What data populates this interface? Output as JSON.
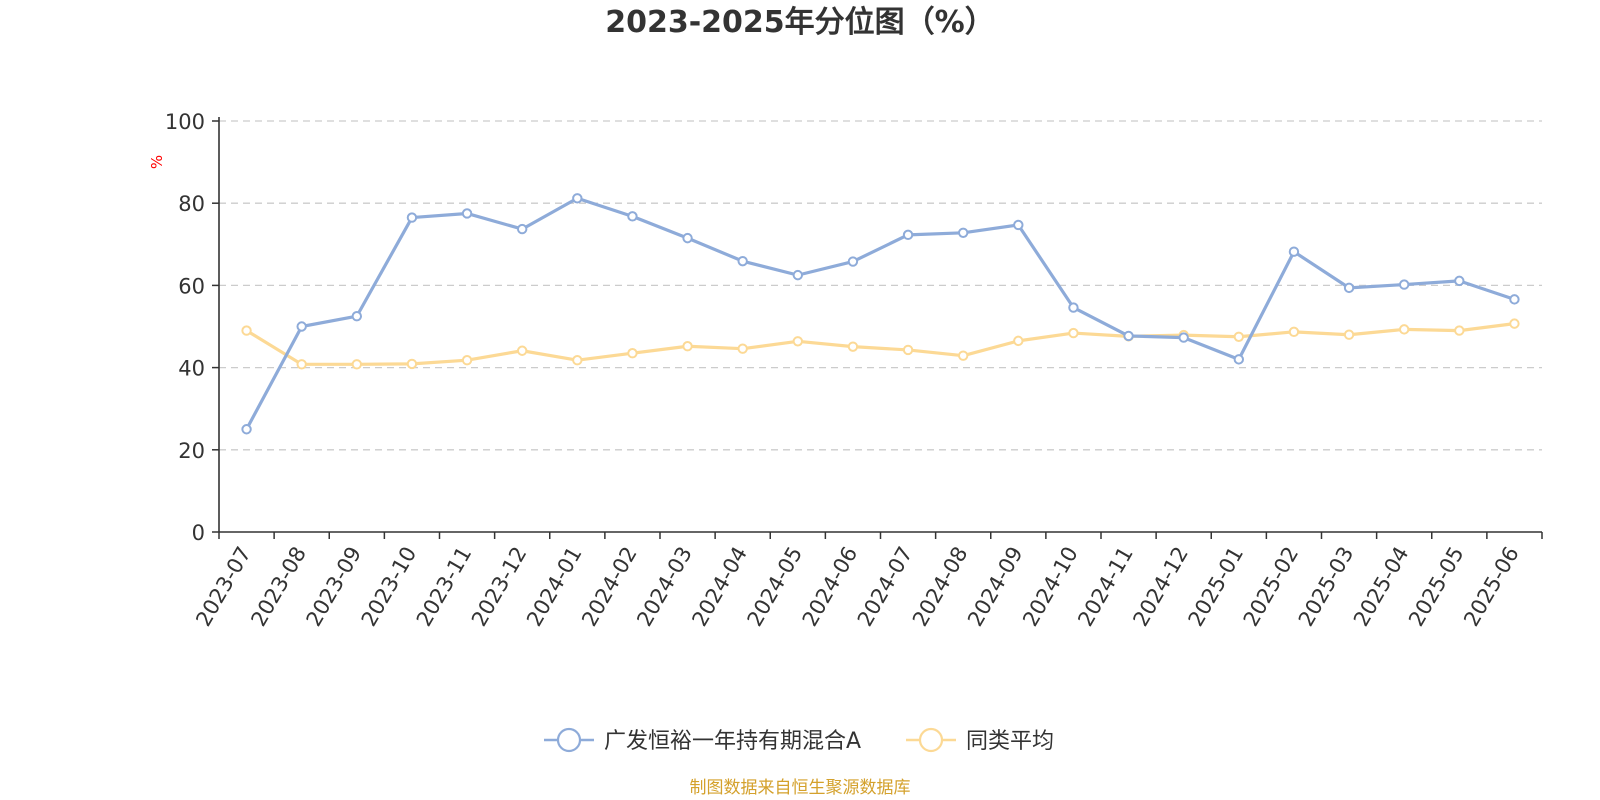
{
  "chart_data": {
    "type": "line",
    "title": "2023-2025年分位图（%）",
    "ylabel": "%",
    "xlabel": "",
    "ylim": [
      0,
      100
    ],
    "yticks": [
      0,
      20,
      40,
      60,
      80,
      100
    ],
    "grid": true,
    "legend_position": "bottom",
    "categories": [
      "2023-07",
      "2023-08",
      "2023-09",
      "2023-10",
      "2023-11",
      "2023-12",
      "2024-01",
      "2024-02",
      "2024-03",
      "2024-04",
      "2024-05",
      "2024-06",
      "2024-07",
      "2024-08",
      "2024-09",
      "2024-10",
      "2024-11",
      "2024-12",
      "2025-01",
      "2025-02",
      "2025-03",
      "2025-04",
      "2025-05",
      "2025-06"
    ],
    "series": [
      {
        "name": "广发恒裕一年持有期混合A",
        "color": "#8eabd9",
        "values": [
          25.0,
          50.0,
          52.5,
          76.5,
          77.5,
          73.7,
          81.2,
          76.8,
          71.5,
          65.9,
          62.5,
          65.8,
          72.3,
          72.8,
          74.7,
          54.6,
          47.7,
          47.3,
          42.0,
          68.2,
          59.4,
          60.2,
          61.1,
          56.6
        ]
      },
      {
        "name": "同类平均",
        "color": "#fcd995",
        "values": [
          49.0,
          40.8,
          40.8,
          40.9,
          41.8,
          44.1,
          41.8,
          43.5,
          45.2,
          44.6,
          46.4,
          45.1,
          44.3,
          42.9,
          46.5,
          48.4,
          47.6,
          47.9,
          47.5,
          48.7,
          48.0,
          49.3,
          49.0,
          50.7
        ]
      }
    ]
  },
  "footer": {
    "source": "制图数据来自恒生聚源数据库"
  },
  "colors": {
    "axis": "#333333",
    "grid": "#cccccc",
    "unit_label": "#ff0000",
    "source_text": "#d4a12c",
    "title": "#333333"
  }
}
